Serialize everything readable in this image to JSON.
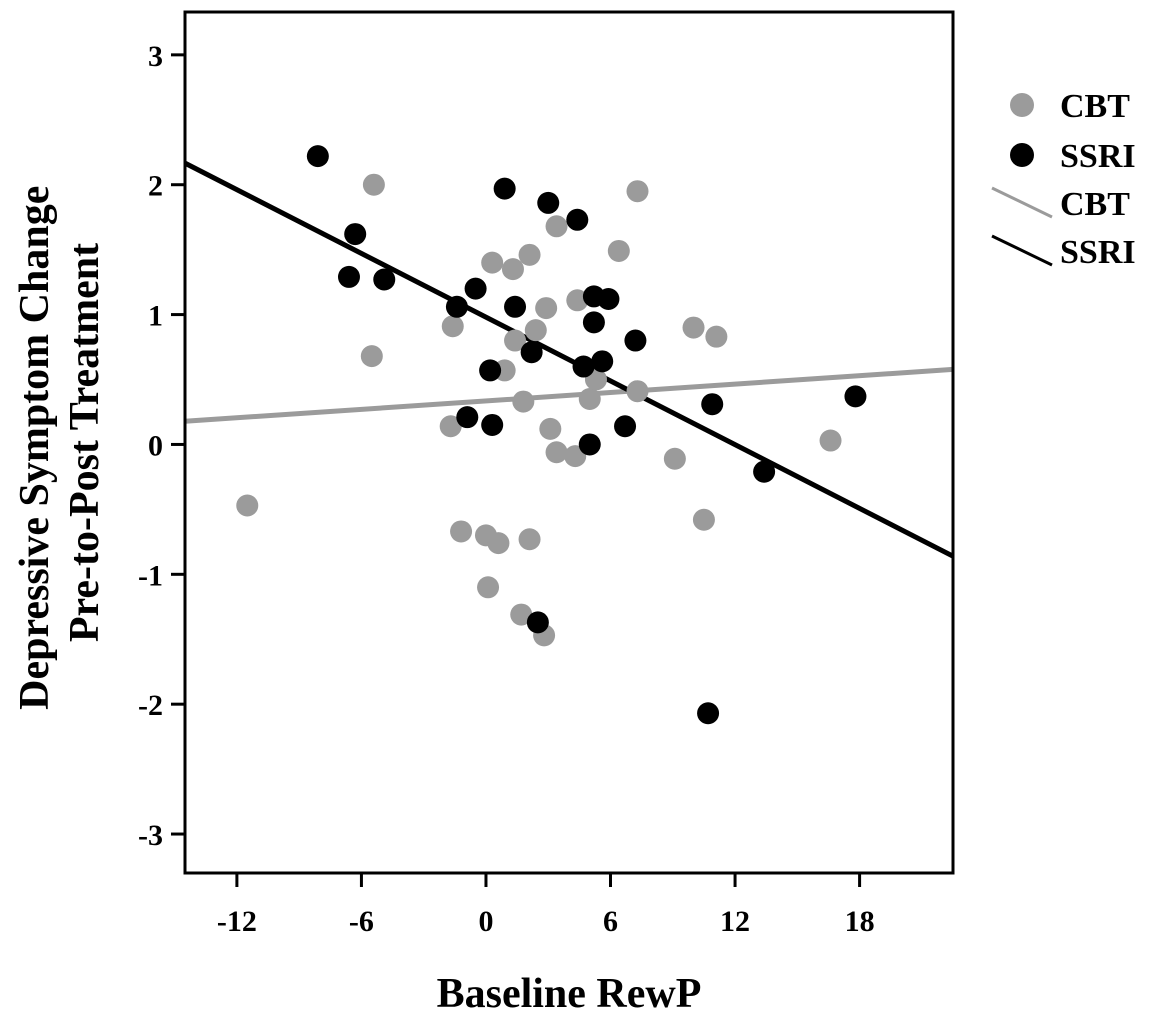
{
  "chart_data": {
    "type": "scatter",
    "xlabel": "Baseline RewP",
    "ylabel_lines": [
      "Depressive Symptom Change",
      "Pre-to-Post Treatment"
    ],
    "xlim": [
      -14.5,
      22.5
    ],
    "ylim": [
      -3.3,
      3.33
    ],
    "xticks": [
      -12,
      -6,
      0,
      6,
      12,
      18
    ],
    "yticks": [
      -3,
      -2,
      -1,
      0,
      1,
      2,
      3
    ],
    "grid": false,
    "legend_position": "right",
    "colors": {
      "CBT": "#9b9b9b",
      "SSRI": "#000000"
    },
    "legend": {
      "markers": [
        "CBT",
        "SSRI"
      ],
      "lines": [
        "CBT",
        "SSRI"
      ]
    },
    "series": [
      {
        "name": "CBT",
        "color": "#9b9b9b",
        "points": [
          [
            -11.5,
            -0.47
          ],
          [
            -5.4,
            2.0
          ],
          [
            -5.5,
            0.68
          ],
          [
            -1.6,
            0.91
          ],
          [
            -1.7,
            0.14
          ],
          [
            -1.2,
            -0.67
          ],
          [
            0.0,
            -0.7
          ],
          [
            0.3,
            1.4
          ],
          [
            0.6,
            -0.76
          ],
          [
            0.9,
            0.57
          ],
          [
            1.3,
            1.35
          ],
          [
            1.4,
            0.8
          ],
          [
            1.7,
            -1.31
          ],
          [
            0.1,
            -1.1
          ],
          [
            1.8,
            0.33
          ],
          [
            2.1,
            1.46
          ],
          [
            2.1,
            -0.73
          ],
          [
            2.4,
            0.88
          ],
          [
            2.9,
            1.05
          ],
          [
            3.1,
            0.12
          ],
          [
            3.4,
            1.68
          ],
          [
            3.4,
            -0.06
          ],
          [
            2.8,
            -1.47
          ],
          [
            4.3,
            -0.09
          ],
          [
            4.4,
            1.11
          ],
          [
            5.0,
            0.35
          ],
          [
            5.3,
            0.5
          ],
          [
            6.4,
            1.49
          ],
          [
            7.3,
            0.41
          ],
          [
            7.3,
            1.95
          ],
          [
            9.1,
            -0.11
          ],
          [
            10.0,
            0.9
          ],
          [
            10.5,
            -0.58
          ],
          [
            11.1,
            0.83
          ],
          [
            16.6,
            0.03
          ]
        ],
        "fit": {
          "slope": 0.0108,
          "intercept": 0.335
        }
      },
      {
        "name": "SSRI",
        "color": "#000000",
        "points": [
          [
            -8.1,
            2.22
          ],
          [
            -6.6,
            1.29
          ],
          [
            -6.3,
            1.62
          ],
          [
            -4.9,
            1.27
          ],
          [
            -1.4,
            1.06
          ],
          [
            -0.9,
            0.21
          ],
          [
            -0.5,
            1.2
          ],
          [
            0.2,
            0.57
          ],
          [
            0.3,
            0.15
          ],
          [
            0.9,
            1.97
          ],
          [
            1.4,
            1.06
          ],
          [
            2.2,
            0.71
          ],
          [
            2.5,
            -1.37
          ],
          [
            3.0,
            1.86
          ],
          [
            4.4,
            1.73
          ],
          [
            4.7,
            0.6
          ],
          [
            5.0,
            0.0
          ],
          [
            5.2,
            1.14
          ],
          [
            5.2,
            0.94
          ],
          [
            5.6,
            0.64
          ],
          [
            5.9,
            1.12
          ],
          [
            6.7,
            0.14
          ],
          [
            7.2,
            0.8
          ],
          [
            10.7,
            -2.07
          ],
          [
            10.9,
            0.31
          ],
          [
            13.4,
            -0.21
          ],
          [
            17.8,
            0.37
          ]
        ],
        "fit": {
          "slope": -0.0818,
          "intercept": 0.98
        }
      }
    ]
  }
}
